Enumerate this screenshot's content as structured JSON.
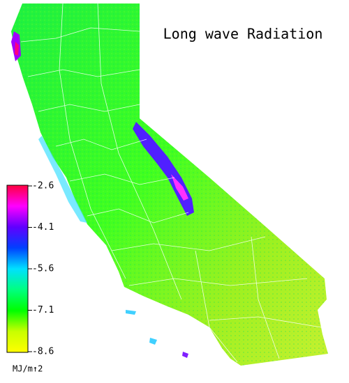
{
  "title": "Long wave Radiation",
  "colorbar": {
    "ticks": [
      -2.6,
      -4.1,
      -5.6,
      -7.1,
      -8.6
    ],
    "colors": [
      "#ffff00",
      "#c8ff00",
      "#00ff00",
      "#00ff80",
      "#00e0ff",
      "#0040ff",
      "#6000ff",
      "#ff00ff",
      "#ff0040"
    ],
    "unit": "MJ/m↑2"
  }
}
